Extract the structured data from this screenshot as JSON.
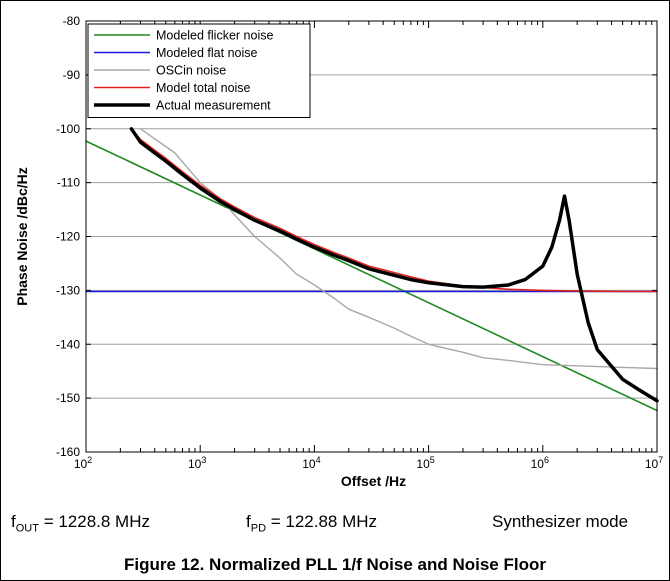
{
  "chart_data": {
    "type": "line",
    "xlabel": "Offset /Hz",
    "ylabel": "Phase Noise /dBc/Hz",
    "xscale": "log",
    "xlim": [
      100,
      10000000
    ],
    "ylim": [
      -160,
      -80
    ],
    "y_ticks": [
      -80,
      -90,
      -100,
      -110,
      -120,
      -130,
      -140,
      -150,
      -160
    ],
    "x_ticks": [
      {
        "base": "10",
        "exp": "2"
      },
      {
        "base": "10",
        "exp": "3"
      },
      {
        "base": "10",
        "exp": "4"
      },
      {
        "base": "10",
        "exp": "5"
      },
      {
        "base": "10",
        "exp": "6"
      },
      {
        "base": "10",
        "exp": "7"
      }
    ],
    "grid": "horizontal",
    "legend_position": "top-left",
    "series": [
      {
        "name": "Modeled flicker noise",
        "color": "#1f8a1f",
        "width": 1.6,
        "x": [
          100,
          10000000
        ],
        "y": [
          -102.3,
          -152.3
        ]
      },
      {
        "name": "Modeled flat noise",
        "color": "#1a1adc",
        "width": 1.6,
        "x": [
          100,
          10000000
        ],
        "y": [
          -130.2,
          -130.2
        ]
      },
      {
        "name": "OSCin noise",
        "color": "#a8a8a8",
        "width": 1.4,
        "x": [
          300,
          600,
          1000,
          1500,
          2000,
          3000,
          5000,
          7000,
          10000,
          15000,
          20000,
          30000,
          50000,
          70000,
          100000,
          200000,
          300000,
          500000,
          1000000,
          2000000,
          5000000,
          10000000
        ],
        "y": [
          -100,
          -104.5,
          -110,
          -113,
          -116,
          -120,
          -124,
          -127,
          -129,
          -131.5,
          -133.5,
          -135,
          -137,
          -138.5,
          -140,
          -141.5,
          -142.5,
          -143,
          -143.8,
          -144,
          -144.3,
          -144.5
        ]
      },
      {
        "name": "Model total noise",
        "color": "#e0201c",
        "width": 1.6,
        "x": [
          250,
          300,
          400,
          500,
          700,
          1000,
          1500,
          2000,
          3000,
          5000,
          7000,
          10000,
          15000,
          20000,
          30000,
          50000,
          70000,
          100000,
          200000,
          500000,
          1000000,
          2000000,
          5000000,
          10000000
        ],
        "y": [
          -100,
          -102,
          -104,
          -105.5,
          -108,
          -110.5,
          -113,
          -114.5,
          -116.5,
          -118.5,
          -120,
          -121.5,
          -123,
          -124,
          -125.5,
          -126.7,
          -127.5,
          -128.3,
          -129.2,
          -129.8,
          -130,
          -130.1,
          -130.2,
          -130.2
        ]
      },
      {
        "name": "Actual measurement",
        "color": "#000000",
        "width": 3.5,
        "x": [
          250,
          300,
          400,
          500,
          700,
          1000,
          1500,
          2000,
          3000,
          5000,
          7000,
          10000,
          15000,
          20000,
          30000,
          50000,
          70000,
          100000,
          200000,
          300000,
          500000,
          700000,
          1000000,
          1200000,
          1400000,
          1550000,
          1700000,
          2000000,
          2500000,
          3000000,
          5000000,
          7000000,
          10000000
        ],
        "y": [
          -100,
          -102.5,
          -104.5,
          -106,
          -108.5,
          -111,
          -113.5,
          -115,
          -117,
          -119,
          -120.5,
          -122,
          -123.5,
          -124.5,
          -126,
          -127.2,
          -128,
          -128.6,
          -129.3,
          -129.4,
          -129,
          -128,
          -125.5,
          -122,
          -117,
          -112.5,
          -117,
          -127,
          -136,
          -141,
          -146.5,
          -148.5,
          -150.5
        ]
      }
    ]
  },
  "conditions": {
    "fout_symbol": "f",
    "fout_sub": "OUT",
    "fout_value": " = 1228.8 MHz",
    "fpd_symbol": "f",
    "fpd_sub": "PD",
    "fpd_value": " = 122.88 MHz",
    "mode": "Synthesizer mode"
  },
  "caption": "Figure 12. Normalized PLL 1/f Noise and Noise Floor"
}
